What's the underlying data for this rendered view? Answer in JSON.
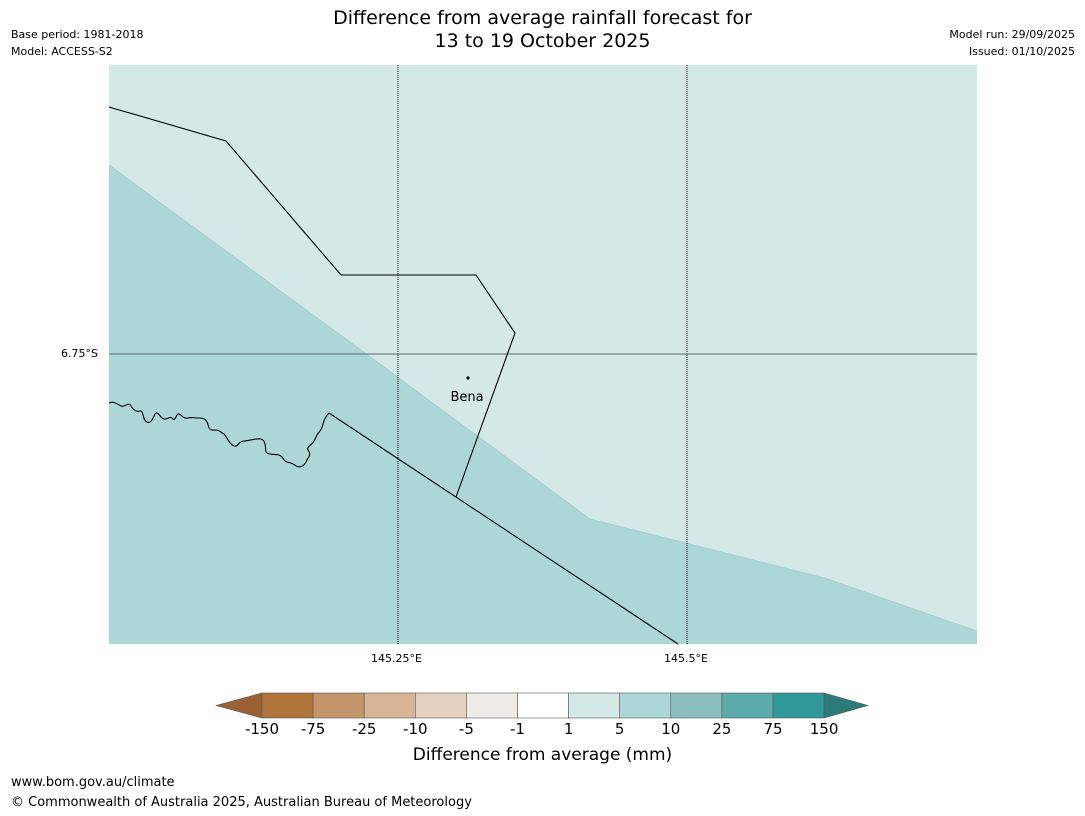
{
  "header": {
    "title_line1": "Difference from average rainfall forecast for",
    "title_line2": "13 to 19 October 2025",
    "base_period": "Base period: 1981-2018",
    "model": "Model: ACCESS-S2",
    "model_run": "Model run: 29/09/2025",
    "issued": "Issued: 01/10/2025"
  },
  "map": {
    "lat_label": "6.75°S",
    "lon_labels": [
      "145.25°E",
      "145.5°E"
    ],
    "place_label": "Bena",
    "colors": {
      "zone_5_10": "#add6d6",
      "zone_1_5": "#d5e8e8",
      "gridline": "#000000"
    }
  },
  "legend": {
    "title": "Difference from average (mm)",
    "tick_labels": [
      "-150",
      "-75",
      "-25",
      "-10",
      "-5",
      "-1",
      "1",
      "5",
      "10",
      "25",
      "75",
      "150"
    ],
    "colors": [
      "#9a6232",
      "#b0753b",
      "#c49569",
      "#d5b596",
      "#e4d1bf",
      "#efebe7",
      "#ffffff",
      "#d5e8e8",
      "#add6d6",
      "#8bbfbf",
      "#5babab",
      "#32999a",
      "#2b7b7b"
    ]
  },
  "footer": {
    "url": "www.bom.gov.au/climate",
    "copyright": "© Commonwealth of Australia 2025, Australian Bureau of Meteorology"
  }
}
